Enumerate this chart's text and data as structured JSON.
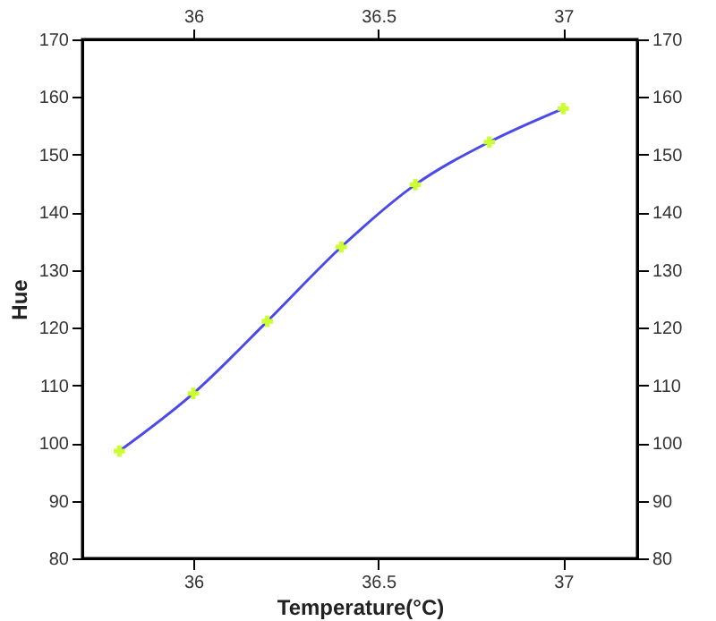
{
  "chart_data": {
    "type": "line",
    "xlabel": "Temperature(°C)",
    "ylabel": "Hue",
    "xlim": [
      35.7,
      37.2
    ],
    "xticks": [
      36,
      36.5,
      37
    ],
    "x2lim": [
      35.7,
      37.2
    ],
    "x2ticks": [
      36,
      36.5,
      37
    ],
    "ylim": [
      80,
      170
    ],
    "yticks": [
      80,
      90,
      100,
      110,
      120,
      130,
      140,
      150,
      160,
      170
    ],
    "y2lim": [
      80,
      170
    ],
    "y2ticks": [
      80,
      90,
      100,
      110,
      120,
      130,
      140,
      150,
      160,
      170
    ],
    "grid": false,
    "series": [
      {
        "color": "#4a4ae8",
        "line_style": "solid",
        "marker": "none",
        "x": [
          35.8,
          36,
          36.2,
          36.4,
          36.6,
          36.8,
          37
        ],
        "values": [
          98.6,
          108.6,
          121.1,
          134,
          144.8,
          152.2,
          158
        ]
      },
      {
        "type": "scatter",
        "color": "#ccff33",
        "marker": "cross",
        "x": [
          35.8,
          36,
          36.2,
          36.4,
          36.6,
          36.8,
          37
        ],
        "values": [
          98.6,
          108.6,
          121.1,
          134,
          144.8,
          152.2,
          158
        ]
      }
    ]
  }
}
